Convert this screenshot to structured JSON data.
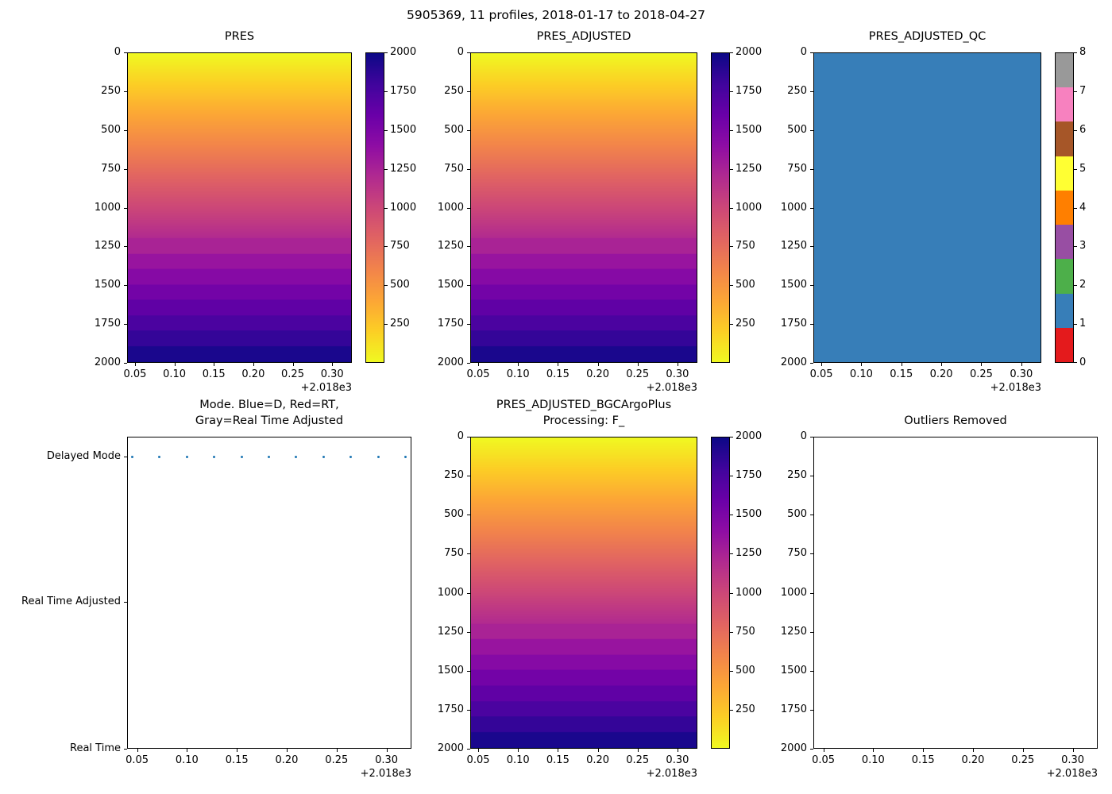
{
  "figure": {
    "title": "5905369, 11 profiles, 2018-01-17 to 2018-04-27"
  },
  "axes_common": {
    "xlim": [
      2018.04,
      2018.325
    ],
    "x_tick_values": [
      2018.05,
      2018.1,
      2018.15,
      2018.2,
      2018.25,
      2018.3
    ],
    "x_tick_labels": [
      "0.05",
      "0.10",
      "0.15",
      "0.20",
      "0.25",
      "0.30"
    ],
    "x_offset_label": "+2.018e3",
    "ylim": [
      0,
      2000
    ],
    "y_inverted": true,
    "y_tick_values": [
      0,
      250,
      500,
      750,
      1000,
      1250,
      1500,
      1750,
      2000
    ],
    "y_tick_labels": [
      "0",
      "250",
      "500",
      "750",
      "1000",
      "1250",
      "1500",
      "1750",
      "2000"
    ]
  },
  "colors": {
    "plasma_stops": [
      "#0d0887",
      "#41049d",
      "#6a00a8",
      "#8f0da4",
      "#b12a90",
      "#cc4778",
      "#e16462",
      "#f2844b",
      "#fca636",
      "#fcce25",
      "#f0f921"
    ],
    "qc_flag_colors": [
      "#e41a1c",
      "#377eb8",
      "#4daf4a",
      "#984ea3",
      "#ff7f00",
      "#ffff33",
      "#a65628",
      "#f781bf",
      "#999999"
    ],
    "delayed_mode_dot": "#1f77b4",
    "qc_fill": "#377eb8",
    "spine": "#000000"
  },
  "chart_data": [
    {
      "id": "pres",
      "type": "heatmap",
      "title_lines": [
        "PRES"
      ],
      "colormap": "plasma_r",
      "value_range": [
        0,
        2000
      ],
      "value_equals_depth": true,
      "band_quantize_start": 1200,
      "band_step": 100,
      "colorbar_ticks": [
        2000,
        1750,
        1500,
        1250,
        1000,
        750,
        500,
        250
      ]
    },
    {
      "id": "pres-adjusted",
      "type": "heatmap",
      "title_lines": [
        "PRES_ADJUSTED"
      ],
      "colormap": "plasma_r",
      "value_range": [
        0,
        2000
      ],
      "value_equals_depth": true,
      "band_quantize_start": 1200,
      "band_step": 100,
      "colorbar_ticks": [
        2000,
        1750,
        1500,
        1250,
        1000,
        750,
        500,
        250
      ]
    },
    {
      "id": "pres-adjusted-qc",
      "type": "fill",
      "title_lines": [
        "PRES_ADJUSTED_QC"
      ],
      "fill_value": 1,
      "colorbar_type": "discrete",
      "colorbar_ticks": [
        0,
        1,
        2,
        3,
        4,
        5,
        6,
        7,
        8
      ]
    },
    {
      "id": "mode",
      "type": "scatter",
      "title_lines": [
        "Mode. Blue=D, Red=RT,",
        "Gray=Real Time Adjusted"
      ],
      "categories": [
        "Delayed Mode",
        "Real Time Adjusted",
        "Real Time"
      ],
      "points_x": [
        2018.045,
        2018.072,
        2018.1,
        2018.127,
        2018.155,
        2018.182,
        2018.209,
        2018.237,
        2018.264,
        2018.292,
        2018.319
      ],
      "points_category": "Delayed Mode"
    },
    {
      "id": "pres-adjusted-bgc",
      "type": "heatmap",
      "title_lines": [
        "PRES_ADJUSTED_BGCArgoPlus",
        "Processing: F_"
      ],
      "colormap": "plasma_r",
      "value_range": [
        0,
        2000
      ],
      "value_equals_depth": true,
      "band_quantize_start": 1200,
      "band_step": 100,
      "colorbar_ticks": [
        2000,
        1750,
        1500,
        1250,
        1000,
        750,
        500,
        250
      ]
    },
    {
      "id": "outliers-removed",
      "type": "empty",
      "title_lines": [
        "Outliers Removed"
      ]
    }
  ]
}
